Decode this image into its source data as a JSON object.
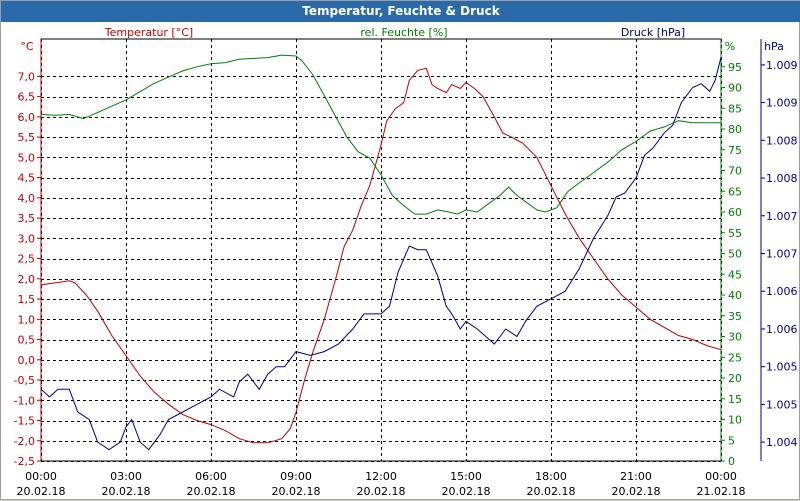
{
  "window": {
    "title": "Temperatur, Feuchte & Druck"
  },
  "colors": {
    "temperature": "#c00000",
    "humidity": "#008000",
    "pressure": "#000090",
    "grid": "#000000",
    "title_bg": "#2a6aa8"
  },
  "chart_data": {
    "type": "line",
    "title": "Temperatur, Feuchte & Druck",
    "x_ticks": [
      {
        "time": "00:00",
        "date": "20.02.18"
      },
      {
        "time": "03:00",
        "date": "20.02.18"
      },
      {
        "time": "06:00",
        "date": "20.02.18"
      },
      {
        "time": "09:00",
        "date": "20.02.18"
      },
      {
        "time": "12:00",
        "date": "20.02.18"
      },
      {
        "time": "15:00",
        "date": "20.02.18"
      },
      {
        "time": "18:00",
        "date": "20.02.18"
      },
      {
        "time": "21:00",
        "date": "20.02.18"
      },
      {
        "time": "00:00",
        "date": "21.02.18"
      }
    ],
    "x_range_hours": [
      0,
      24
    ],
    "grid": true,
    "axes": {
      "temperature": {
        "label": "Temperatur [°C]",
        "unit": "°C",
        "range": [
          -2.5,
          7.75
        ],
        "ticks": [
          "7,0",
          "6,5",
          "6,0",
          "5,5",
          "5,0",
          "4,5",
          "4,0",
          "3,5",
          "3,0",
          "2,5",
          "2,0",
          "1,5",
          "1,0",
          "0,5",
          "0,0",
          "-0,5",
          "-1,0",
          "-1,5",
          "-2,0",
          "-2,5"
        ],
        "tick_values": [
          7.0,
          6.5,
          6.0,
          5.5,
          5.0,
          4.5,
          4.0,
          3.5,
          3.0,
          2.5,
          2.0,
          1.5,
          1.0,
          0.5,
          0.0,
          -0.5,
          -1.0,
          -1.5,
          -2.0,
          -2.5
        ]
      },
      "humidity": {
        "label": "rel. Feuchte [%]",
        "unit": "%",
        "range": [
          0,
          100
        ],
        "ticks": [
          "95",
          "90",
          "85",
          "80",
          "75",
          "70",
          "65",
          "60",
          "55",
          "50",
          "45",
          "40",
          "35",
          "30",
          "25",
          "20",
          "15",
          "10",
          "5",
          "0"
        ],
        "tick_values": [
          95,
          90,
          85,
          80,
          75,
          70,
          65,
          60,
          55,
          50,
          45,
          40,
          35,
          30,
          25,
          20,
          15,
          10,
          5,
          0
        ]
      },
      "pressure": {
        "label": "Druck [hPa]",
        "unit": "hPa",
        "range": [
          1003.75,
          1009.25
        ],
        "ticks": [
          "1.009",
          "1.009",
          "1.008",
          "1.008",
          "1.007",
          "1.007",
          "1.006",
          "1.006",
          "1.005",
          "1.005",
          "1.004"
        ],
        "tick_values": [
          1009.0,
          1008.5,
          1008.0,
          1007.5,
          1007.0,
          1006.5,
          1006.0,
          1005.5,
          1005.0,
          1004.5,
          1004.0
        ]
      }
    },
    "series": [
      {
        "name": "Temperatur [°C]",
        "axis": "temperature",
        "color": "#c00000",
        "points": [
          [
            0,
            1.85
          ],
          [
            0.5,
            1.9
          ],
          [
            1.0,
            1.95
          ],
          [
            1.2,
            1.9
          ],
          [
            1.6,
            1.6
          ],
          [
            2.0,
            1.2
          ],
          [
            2.5,
            0.6
          ],
          [
            3.0,
            0.1
          ],
          [
            3.5,
            -0.4
          ],
          [
            4.0,
            -0.8
          ],
          [
            4.5,
            -1.1
          ],
          [
            5.0,
            -1.35
          ],
          [
            5.5,
            -1.5
          ],
          [
            6.0,
            -1.6
          ],
          [
            6.5,
            -1.75
          ],
          [
            7.0,
            -1.95
          ],
          [
            7.5,
            -2.05
          ],
          [
            8.0,
            -2.05
          ],
          [
            8.5,
            -1.95
          ],
          [
            8.8,
            -1.7
          ],
          [
            9.0,
            -1.3
          ],
          [
            9.3,
            -0.5
          ],
          [
            9.6,
            0.2
          ],
          [
            10.0,
            1.0
          ],
          [
            10.4,
            2.0
          ],
          [
            10.7,
            2.8
          ],
          [
            11.0,
            3.2
          ],
          [
            11.3,
            3.8
          ],
          [
            11.6,
            4.3
          ],
          [
            12.0,
            5.3
          ],
          [
            12.2,
            5.9
          ],
          [
            12.5,
            6.2
          ],
          [
            12.8,
            6.35
          ],
          [
            13.0,
            6.9
          ],
          [
            13.3,
            7.15
          ],
          [
            13.6,
            7.2
          ],
          [
            13.8,
            6.8
          ],
          [
            14.0,
            6.7
          ],
          [
            14.3,
            6.6
          ],
          [
            14.5,
            6.8
          ],
          [
            14.8,
            6.7
          ],
          [
            15.0,
            6.85
          ],
          [
            15.3,
            6.7
          ],
          [
            15.6,
            6.5
          ],
          [
            16.0,
            6.0
          ],
          [
            16.3,
            5.6
          ],
          [
            16.6,
            5.5
          ],
          [
            17.0,
            5.35
          ],
          [
            17.5,
            5.0
          ],
          [
            18.0,
            4.3
          ],
          [
            18.5,
            3.6
          ],
          [
            19.0,
            3.0
          ],
          [
            19.5,
            2.5
          ],
          [
            20.0,
            2.0
          ],
          [
            20.5,
            1.6
          ],
          [
            21.0,
            1.3
          ],
          [
            21.5,
            1.0
          ],
          [
            22.0,
            0.8
          ],
          [
            22.5,
            0.6
          ],
          [
            23.0,
            0.5
          ],
          [
            23.5,
            0.35
          ],
          [
            24.0,
            0.25
          ]
        ]
      },
      {
        "name": "rel. Feuchte [%]",
        "axis": "humidity",
        "color": "#008000",
        "points": [
          [
            0,
            83.5
          ],
          [
            0.5,
            83.3
          ],
          [
            1.0,
            83.5
          ],
          [
            1.5,
            82.5
          ],
          [
            2.0,
            84
          ],
          [
            2.5,
            85.5
          ],
          [
            3.0,
            87
          ],
          [
            3.5,
            89
          ],
          [
            4.0,
            91
          ],
          [
            4.5,
            92.5
          ],
          [
            5.0,
            94
          ],
          [
            5.5,
            95
          ],
          [
            6.0,
            95.7
          ],
          [
            6.5,
            96
          ],
          [
            7.0,
            96.8
          ],
          [
            7.5,
            97
          ],
          [
            8.0,
            97.2
          ],
          [
            8.5,
            97.8
          ],
          [
            9.0,
            97.6
          ],
          [
            9.2,
            96.5
          ],
          [
            9.6,
            93
          ],
          [
            10.0,
            88
          ],
          [
            10.4,
            83
          ],
          [
            10.8,
            78
          ],
          [
            11.2,
            74.5
          ],
          [
            11.6,
            73
          ],
          [
            12.0,
            69
          ],
          [
            12.4,
            64
          ],
          [
            12.8,
            61.5
          ],
          [
            13.2,
            59.5
          ],
          [
            13.6,
            59.5
          ],
          [
            14.0,
            60.5
          ],
          [
            14.4,
            60.0
          ],
          [
            14.7,
            59.5
          ],
          [
            15.0,
            60.5
          ],
          [
            15.4,
            60.0
          ],
          [
            15.8,
            62
          ],
          [
            16.2,
            64
          ],
          [
            16.5,
            66
          ],
          [
            16.8,
            64
          ],
          [
            17.2,
            62
          ],
          [
            17.5,
            60.5
          ],
          [
            17.8,
            60
          ],
          [
            18.2,
            61
          ],
          [
            18.6,
            65
          ],
          [
            19.0,
            67
          ],
          [
            19.5,
            69.5
          ],
          [
            20.0,
            72
          ],
          [
            20.5,
            75
          ],
          [
            21.0,
            77
          ],
          [
            21.5,
            79.5
          ],
          [
            22.0,
            80.5
          ],
          [
            22.5,
            82
          ],
          [
            23.0,
            81.5
          ],
          [
            23.5,
            81.5
          ],
          [
            24.0,
            81.5
          ]
        ]
      },
      {
        "name": "Druck [hPa]",
        "axis": "pressure",
        "color": "#000090",
        "points": [
          [
            0,
            1004.7
          ],
          [
            0.3,
            1004.6
          ],
          [
            0.6,
            1004.7
          ],
          [
            1.0,
            1004.7
          ],
          [
            1.3,
            1004.4
          ],
          [
            1.7,
            1004.3
          ],
          [
            2.0,
            1004.0
          ],
          [
            2.4,
            1003.9
          ],
          [
            2.8,
            1004.0
          ],
          [
            3.0,
            1004.2
          ],
          [
            3.2,
            1004.3
          ],
          [
            3.5,
            1004.0
          ],
          [
            3.8,
            1003.9
          ],
          [
            4.2,
            1004.1
          ],
          [
            4.5,
            1004.3
          ],
          [
            5.0,
            1004.4
          ],
          [
            5.5,
            1004.5
          ],
          [
            6.0,
            1004.6
          ],
          [
            6.3,
            1004.7
          ],
          [
            6.8,
            1004.6
          ],
          [
            7.0,
            1004.8
          ],
          [
            7.3,
            1004.9
          ],
          [
            7.7,
            1004.7
          ],
          [
            8.0,
            1004.9
          ],
          [
            8.3,
            1005.0
          ],
          [
            8.6,
            1005.0
          ],
          [
            9.0,
            1005.2
          ],
          [
            9.5,
            1005.15
          ],
          [
            10.0,
            1005.2
          ],
          [
            10.5,
            1005.3
          ],
          [
            11.0,
            1005.5
          ],
          [
            11.4,
            1005.7
          ],
          [
            12.0,
            1005.7
          ],
          [
            12.3,
            1005.8
          ],
          [
            12.6,
            1006.25
          ],
          [
            13.0,
            1006.6
          ],
          [
            13.3,
            1006.55
          ],
          [
            13.6,
            1006.55
          ],
          [
            14.0,
            1006.2
          ],
          [
            14.3,
            1005.8
          ],
          [
            14.5,
            1005.7
          ],
          [
            14.8,
            1005.5
          ],
          [
            15.0,
            1005.6
          ],
          [
            15.4,
            1005.5
          ],
          [
            15.7,
            1005.4
          ],
          [
            16.0,
            1005.3
          ],
          [
            16.4,
            1005.5
          ],
          [
            16.8,
            1005.4
          ],
          [
            17.1,
            1005.6
          ],
          [
            17.5,
            1005.8
          ],
          [
            18.0,
            1005.9
          ],
          [
            18.5,
            1006.0
          ],
          [
            19.0,
            1006.3
          ],
          [
            19.5,
            1006.7
          ],
          [
            20.0,
            1007.0
          ],
          [
            20.3,
            1007.25
          ],
          [
            20.6,
            1007.3
          ],
          [
            21.0,
            1007.5
          ],
          [
            21.3,
            1007.8
          ],
          [
            21.6,
            1007.9
          ],
          [
            22.0,
            1008.1
          ],
          [
            22.3,
            1008.2
          ],
          [
            22.6,
            1008.5
          ],
          [
            23.0,
            1008.7
          ],
          [
            23.3,
            1008.75
          ],
          [
            23.6,
            1008.65
          ],
          [
            23.8,
            1008.8
          ],
          [
            24.0,
            1009.1
          ]
        ]
      }
    ]
  }
}
